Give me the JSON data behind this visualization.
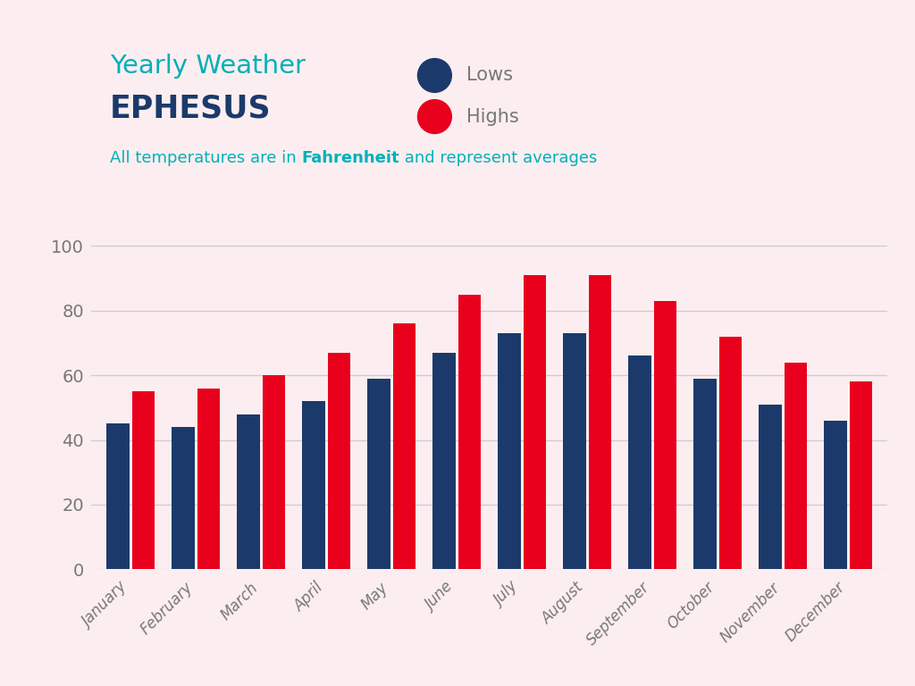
{
  "months": [
    "January",
    "February",
    "March",
    "April",
    "May",
    "June",
    "July",
    "August",
    "September",
    "October",
    "November",
    "December"
  ],
  "lows": [
    45,
    44,
    48,
    52,
    59,
    67,
    73,
    73,
    66,
    59,
    51,
    46
  ],
  "highs": [
    55,
    56,
    60,
    67,
    76,
    85,
    91,
    91,
    83,
    72,
    64,
    58
  ],
  "low_color": "#1b3a6b",
  "high_color": "#e8001d",
  "background_color": "#fceef0",
  "title_line1": "Yearly Weather",
  "title_line2": "EPHESUS",
  "subtitle_pre": "All temperatures are in ",
  "subtitle_bold": "Fahrenheit",
  "subtitle_post": " and represent averages",
  "teal_color": "#00b0b9",
  "navy_color": "#1b3a6b",
  "text_color": "#777777",
  "legend_lows": "Lows",
  "legend_highs": "Highs",
  "yticks": [
    0,
    20,
    40,
    60,
    80,
    100
  ],
  "ylim": [
    0,
    106
  ],
  "grid_color": "#cccccc"
}
